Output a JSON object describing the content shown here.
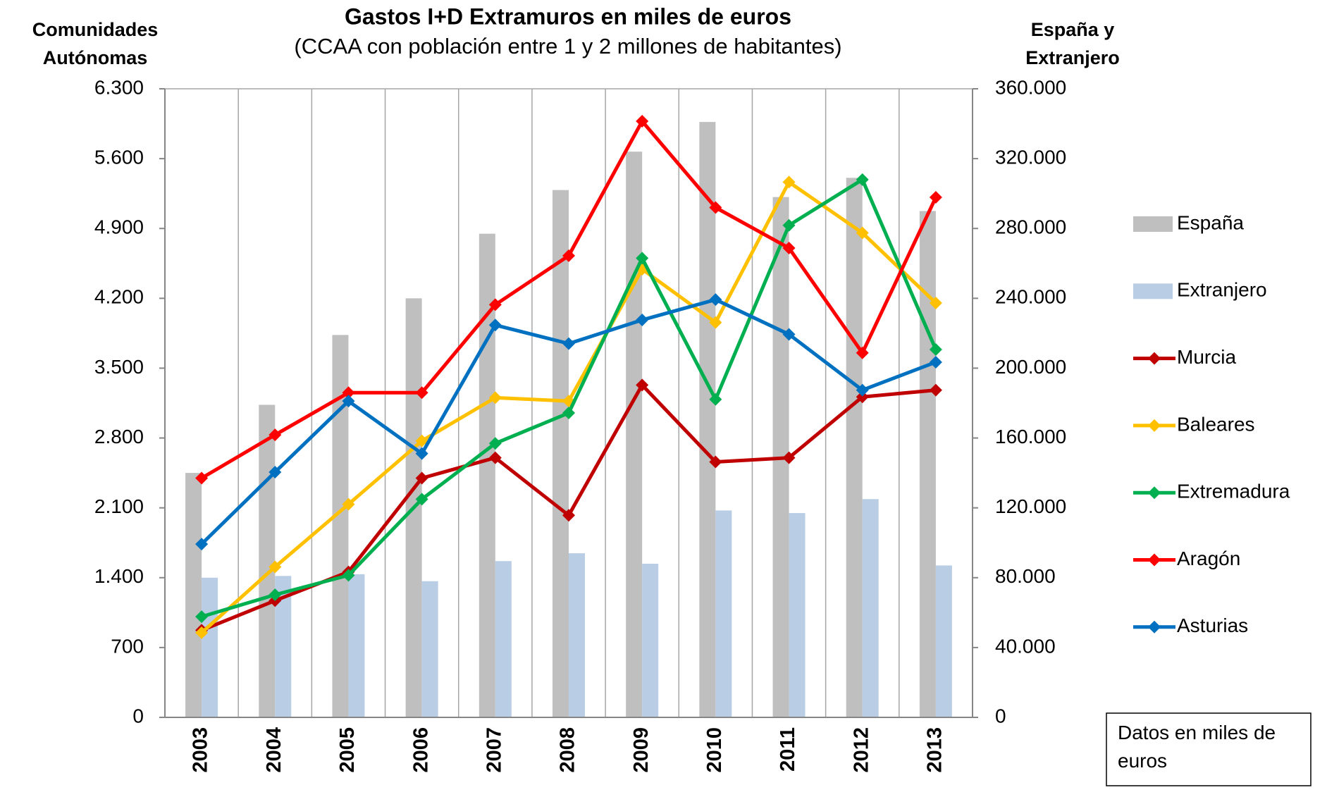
{
  "chart_data": {
    "type": "bar-line",
    "title": "Gastos I+D Extramuros en miles de euros",
    "subtitle": "(CCAA con población entre 1 y 2 millones de habitantes)",
    "y_label": [
      "Comunidades",
      "Autónomas"
    ],
    "y2_label": [
      "España y",
      "Extranjero"
    ],
    "note": "Datos en miles de euros",
    "categories": [
      "2003",
      "2004",
      "2005",
      "2006",
      "2007",
      "2008",
      "2009",
      "2010",
      "2011",
      "2012",
      "2013"
    ],
    "ylim": [
      0,
      6300
    ],
    "yticks": [
      0,
      700,
      {
        "value": 1400,
        "label": "1.400"
      },
      {
        "value": 2100,
        "label": "2.100"
      },
      {
        "value": 2800,
        "label": "2.800"
      },
      {
        "value": 3500,
        "label": "3.500"
      },
      {
        "value": 4200,
        "label": "4.200"
      },
      {
        "value": 4900,
        "label": "4.900"
      },
      {
        "value": 5600,
        "label": "5.600"
      },
      {
        "value": 6300,
        "label": "6.300"
      }
    ],
    "y2lim": [
      0,
      360000
    ],
    "y2ticks": [
      0,
      {
        "value": 40000,
        "label": "40.000"
      },
      {
        "value": 80000,
        "label": "80.000"
      },
      {
        "value": 120000,
        "label": "120.000"
      },
      {
        "value": 160000,
        "label": "160.000"
      },
      {
        "value": 200000,
        "label": "200.000"
      },
      {
        "value": 240000,
        "label": "240.000"
      },
      {
        "value": 280000,
        "label": "280.000"
      },
      {
        "value": 320000,
        "label": "320.000"
      },
      {
        "value": 360000,
        "label": "360.000"
      }
    ],
    "grid": "x",
    "legend": "right",
    "series": [
      {
        "name": "España",
        "type": "bar",
        "axis": "y2",
        "color": "#bfbfbf",
        "values": [
          140000,
          179000,
          219000,
          240000,
          277000,
          302000,
          324000,
          341000,
          298000,
          309000,
          290000
        ]
      },
      {
        "name": "Extranjero",
        "type": "bar",
        "axis": "y2",
        "color": "#b9cde5",
        "values": [
          80000,
          81000,
          82000,
          78000,
          89500,
          94000,
          88000,
          118500,
          117000,
          125000,
          87000
        ]
      },
      {
        "name": "Murcia",
        "type": "line",
        "color": "#c00000",
        "values": [
          873,
          1170,
          1458,
          2398,
          2602,
          2025,
          3331,
          2560,
          2602,
          3212,
          3280
        ]
      },
      {
        "name": "Baleares",
        "type": "line",
        "color": "#ffc000",
        "values": [
          848,
          1508,
          2136,
          2771,
          3204,
          3170,
          4492,
          3958,
          5365,
          4856,
          4153
        ]
      },
      {
        "name": "Extremadura",
        "type": "line",
        "color": "#00b050",
        "values": [
          1009,
          1229,
          1424,
          2187,
          2746,
          3051,
          4602,
          3187,
          4932,
          5390,
          3687
        ]
      },
      {
        "name": "Aragón",
        "type": "line",
        "color": "#ff0000",
        "values": [
          2398,
          2831,
          3254,
          3254,
          4136,
          4627,
          5975,
          5110,
          4704,
          3653,
          5212
        ]
      },
      {
        "name": "Asturias",
        "type": "line",
        "color": "#0070c0",
        "values": [
          1737,
          2458,
          3170,
          2644,
          3932,
          3746,
          3983,
          4187,
          3839,
          3280,
          3560
        ]
      }
    ]
  }
}
